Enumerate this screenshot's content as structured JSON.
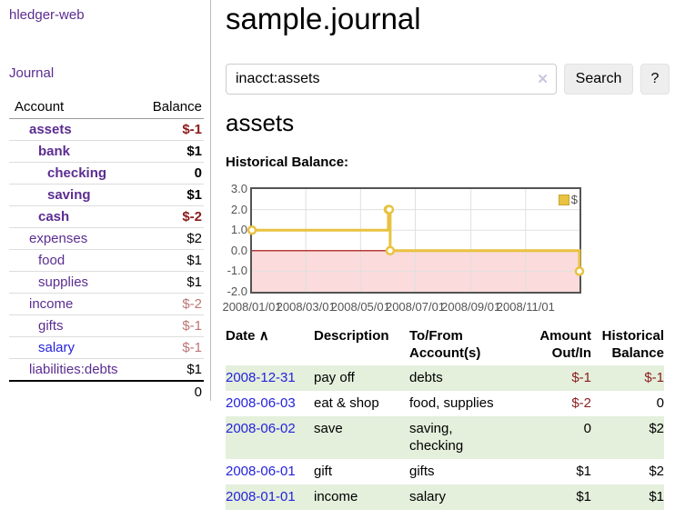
{
  "app": {
    "name": "hledger-web",
    "journal_nav": "Journal"
  },
  "sidebar": {
    "headers": {
      "account": "Account",
      "balance": "Balance"
    },
    "accounts": [
      {
        "label": "assets",
        "depth": 1,
        "bold": true,
        "link": "purple",
        "balance": "$-1",
        "balance_class": "neg"
      },
      {
        "label": "bank",
        "depth": 2,
        "bold": true,
        "link": "purple",
        "balance": "$1",
        "balance_class": "pos"
      },
      {
        "label": "checking",
        "depth": 3,
        "bold": true,
        "link": "purple",
        "balance": "0",
        "balance_class": "pos"
      },
      {
        "label": "saving",
        "depth": 3,
        "bold": true,
        "link": "purple",
        "balance": "$1",
        "balance_class": "pos"
      },
      {
        "label": "cash",
        "depth": 2,
        "bold": true,
        "link": "purple",
        "balance": "$-2",
        "balance_class": "neg"
      },
      {
        "label": "expenses",
        "depth": 1,
        "bold": false,
        "link": "purple",
        "balance": "$2",
        "balance_class": "pos"
      },
      {
        "label": "food",
        "depth": 2,
        "bold": false,
        "link": "purple",
        "balance": "$1",
        "balance_class": "pos"
      },
      {
        "label": "supplies",
        "depth": 2,
        "bold": false,
        "link": "purple",
        "balance": "$1",
        "balance_class": "pos"
      },
      {
        "label": "income",
        "depth": 1,
        "bold": false,
        "link": "purple",
        "balance": "$-2",
        "balance_class": "negmuted"
      },
      {
        "label": "gifts",
        "depth": 2,
        "bold": false,
        "link": "purple",
        "balance": "$-1",
        "balance_class": "negmuted"
      },
      {
        "label": "salary",
        "depth": 2,
        "bold": false,
        "link": "blue",
        "balance": "$-1",
        "balance_class": "negmuted"
      },
      {
        "label": "liabilities:debts",
        "depth": 1,
        "bold": false,
        "link": "purple",
        "balance": "$1",
        "balance_class": "pos"
      }
    ],
    "total": "0"
  },
  "header": {
    "title": "sample.journal"
  },
  "search": {
    "value": "inacct:assets",
    "clear_icon": "✕",
    "button_label": "Search",
    "help_label": "?"
  },
  "account_page": {
    "heading": "assets",
    "chart_label": "Historical Balance:"
  },
  "chart_data": {
    "type": "line",
    "step": true,
    "title": "Historical Balance",
    "legend": "$",
    "legend_position": "top-right",
    "xlim": [
      "2008-01-01",
      "2008-12-31"
    ],
    "ylim": [
      -2.0,
      3.0
    ],
    "y_ticks": [
      "3.0",
      "2.0",
      "1.0",
      "0.0",
      "-1.0",
      "-2.0"
    ],
    "x_ticks": [
      {
        "date": "2008-01-01",
        "label": "2008/01/01"
      },
      {
        "date": "2008-03-01",
        "label": "2008/03/01"
      },
      {
        "date": "2008-05-01",
        "label": "2008/05/01"
      },
      {
        "date": "2008-07-01",
        "label": "2008/07/01"
      },
      {
        "date": "2008-09-01",
        "label": "2008/09/01"
      },
      {
        "date": "2008-11-01",
        "label": "2008/11/01"
      }
    ],
    "series": [
      {
        "name": "$",
        "color": "#e8c240",
        "points": [
          {
            "x": "2008-01-01",
            "y": 1
          },
          {
            "x": "2008-06-01",
            "y": 2
          },
          {
            "x": "2008-06-02",
            "y": 2
          },
          {
            "x": "2008-06-03",
            "y": 0
          },
          {
            "x": "2008-12-31",
            "y": -1
          }
        ]
      }
    ],
    "negative_region_fill": "#fbdbdb",
    "zero_line_color": "#a40000",
    "grid_color": "#e0e0e0",
    "border_color": "#545454"
  },
  "register": {
    "headers": {
      "date": "Date",
      "sort_arrow": "∧",
      "description": "Description",
      "accounts": "To/From Account(s)",
      "amount": "Amount Out/In",
      "balance": "Historical Balance"
    },
    "rows": [
      {
        "date": "2008-12-31",
        "description": "pay off",
        "accounts": "debts",
        "amount": "$-1",
        "amount_class": "neg",
        "balance": "$-1",
        "balance_class": "neg"
      },
      {
        "date": "2008-06-03",
        "description": "eat & shop",
        "accounts": "food, supplies",
        "amount": "$-2",
        "amount_class": "neg",
        "balance": "0",
        "balance_class": "pos"
      },
      {
        "date": "2008-06-02",
        "description": "save",
        "accounts": "saving, checking",
        "amount": "0",
        "amount_class": "pos",
        "balance": "$2",
        "balance_class": "pos"
      },
      {
        "date": "2008-06-01",
        "description": "gift",
        "accounts": "gifts",
        "amount": "$1",
        "amount_class": "pos",
        "balance": "$2",
        "balance_class": "pos"
      },
      {
        "date": "2008-01-01",
        "description": "income",
        "accounts": "salary",
        "amount": "$1",
        "amount_class": "pos",
        "balance": "$1",
        "balance_class": "pos"
      }
    ]
  }
}
